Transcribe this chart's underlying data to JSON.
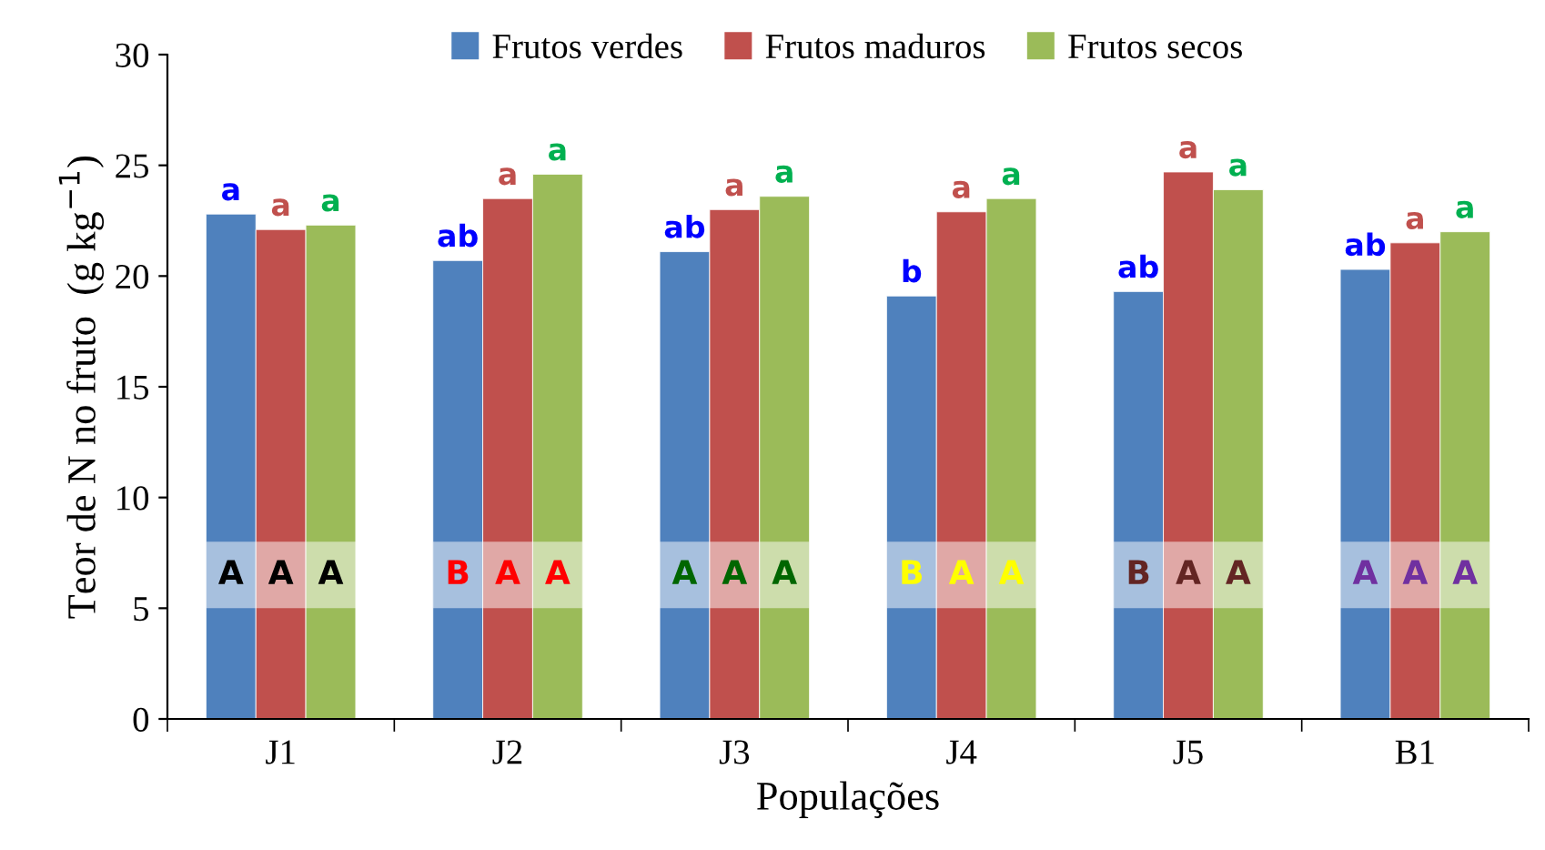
{
  "chart_data": {
    "type": "bar",
    "xlabel": "Populações",
    "ylabel": "Teor de N no fruto  (g kg$^{−1}$)",
    "categories": [
      "J1",
      "J2",
      "J3",
      "J4",
      "J5",
      "B1"
    ],
    "series": [
      {
        "name": "Frutos verdes",
        "color": "#4f81bd",
        "values": [
          22.8,
          20.7,
          21.1,
          19.1,
          19.3,
          20.3
        ],
        "value_labels": [
          "a",
          "ab",
          "ab",
          "b",
          "ab",
          "ab"
        ]
      },
      {
        "name": "Frutos maduros",
        "color": "#c0504d",
        "values": [
          22.1,
          23.5,
          23.0,
          22.9,
          24.7,
          21.5
        ],
        "value_labels": [
          "a",
          "a",
          "a",
          "a",
          "a",
          "a"
        ]
      },
      {
        "name": "Frutos secos",
        "color": "#9bbb59",
        "values": [
          22.3,
          24.6,
          23.6,
          23.5,
          23.9,
          22.0
        ],
        "value_labels": [
          "a",
          "a",
          "a",
          "a",
          "a",
          "a"
        ]
      }
    ],
    "bands": [
      {
        "axis": "y",
        "from": 5,
        "to": 8,
        "color": "#ffffff"
      }
    ],
    "annotations": [
      "A",
      "A",
      "A",
      "B",
      "A",
      "A",
      "A",
      "A",
      "A",
      "B",
      "A",
      "A",
      "B",
      "A",
      "A",
      "A",
      "A",
      "A"
    ],
    "ylim": [
      0,
      30
    ],
    "yticks": [
      0,
      5,
      10,
      15,
      20,
      25,
      30
    ],
    "grid": false,
    "legend": "top"
  }
}
